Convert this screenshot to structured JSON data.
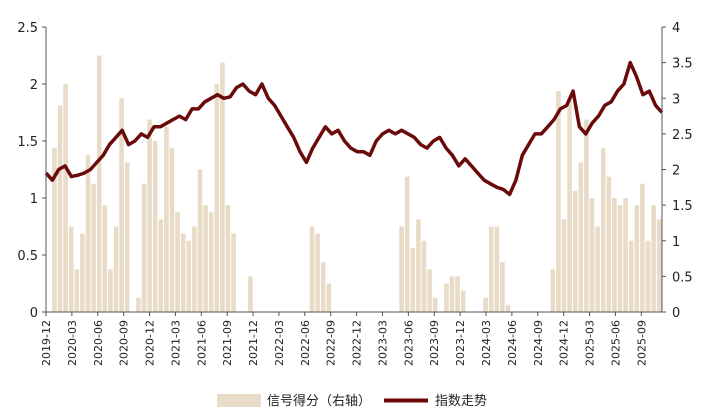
{
  "chart_data": {
    "type": "bar+line",
    "title": "",
    "xlabel": "",
    "ylabel": "",
    "y_left": {
      "min": 0,
      "max": 2.5,
      "ticks": [
        "0",
        "0.5",
        "1",
        "1.5",
        "2",
        "2.5"
      ]
    },
    "y_right": {
      "min": 0,
      "max": 4,
      "ticks": [
        "0",
        "0.5",
        "1",
        "1.5",
        "2",
        "2.5",
        "3",
        "3.5",
        "4"
      ]
    },
    "x_ticks": [
      "2019-12",
      "2020-03",
      "2020-06",
      "2020-09",
      "2020-12",
      "2021-03",
      "2021-06",
      "2021-09",
      "2021-12",
      "2022-03",
      "2022-06",
      "2022-09",
      "2022-12",
      "2023-03",
      "2023-06",
      "2023-09",
      "2023-12",
      "2024-03",
      "2024-06",
      "2024-09",
      "2024-12",
      "2025-03",
      "2025-06",
      "2025-09"
    ],
    "legend": {
      "placement": "bottom-center"
    },
    "series": [
      {
        "name": "信号得分（右轴）",
        "type": "bar",
        "axis": "right",
        "color": "#e8dcc8",
        "values": [
          0,
          2.3,
          2.9,
          3.2,
          1.2,
          0.6,
          1.1,
          2.2,
          1.8,
          3.6,
          1.5,
          0.6,
          1.2,
          3.0,
          2.1,
          0,
          0.2,
          1.8,
          2.7,
          2.4,
          1.3,
          2.6,
          2.3,
          1.4,
          1.1,
          1.0,
          1.2,
          2.0,
          1.5,
          1.4,
          3.2,
          3.5,
          1.5,
          1.1,
          0,
          0,
          0.5,
          0,
          0,
          0,
          0,
          0,
          0,
          0,
          0,
          0,
          0,
          1.2,
          1.1,
          0.7,
          0.4,
          0,
          0,
          0,
          0,
          0,
          0,
          0,
          0,
          0,
          0,
          0,
          0,
          1.2,
          1.9,
          0.9,
          1.3,
          1.0,
          0.6,
          0.2,
          0,
          0.4,
          0.5,
          0.5,
          0.3,
          0,
          0,
          0,
          0.2,
          1.2,
          1.2,
          0.7,
          0.1,
          0,
          0,
          0,
          0,
          0,
          0,
          0,
          0.6,
          3.1,
          1.3,
          3.0,
          1.7,
          2.1,
          2.7,
          1.6,
          1.2,
          2.3,
          1.9,
          1.6,
          1.5,
          1.6,
          1.0,
          1.5,
          1.8,
          1.0,
          1.5,
          1.3
        ],
        "note": "weekly signal score, read from the bar heights"
      },
      {
        "name": "指数走势",
        "type": "line",
        "axis": "right",
        "color": "#6b0a0a",
        "values": [
          1.95,
          1.85,
          2.0,
          2.05,
          1.9,
          1.92,
          1.95,
          2.0,
          2.1,
          2.2,
          2.35,
          2.45,
          2.55,
          2.35,
          2.4,
          2.5,
          2.45,
          2.6,
          2.6,
          2.65,
          2.7,
          2.75,
          2.7,
          2.85,
          2.85,
          2.95,
          3.0,
          3.05,
          3.0,
          3.02,
          3.15,
          3.2,
          3.1,
          3.05,
          3.2,
          3.0,
          2.9,
          2.75,
          2.6,
          2.45,
          2.25,
          2.1,
          2.3,
          2.45,
          2.6,
          2.5,
          2.55,
          2.4,
          2.3,
          2.25,
          2.25,
          2.2,
          2.4,
          2.5,
          2.55,
          2.5,
          2.55,
          2.5,
          2.45,
          2.35,
          2.3,
          2.4,
          2.45,
          2.3,
          2.2,
          2.05,
          2.15,
          2.05,
          1.95,
          1.85,
          1.8,
          1.75,
          1.72,
          1.65,
          1.85,
          2.2,
          2.35,
          2.5,
          2.5,
          2.6,
          2.7,
          2.85,
          2.9,
          3.1,
          2.6,
          2.5,
          2.65,
          2.75,
          2.9,
          2.95,
          3.1,
          3.2,
          3.5,
          3.3,
          3.05,
          3.1,
          2.9,
          2.8
        ]
      }
    ]
  }
}
